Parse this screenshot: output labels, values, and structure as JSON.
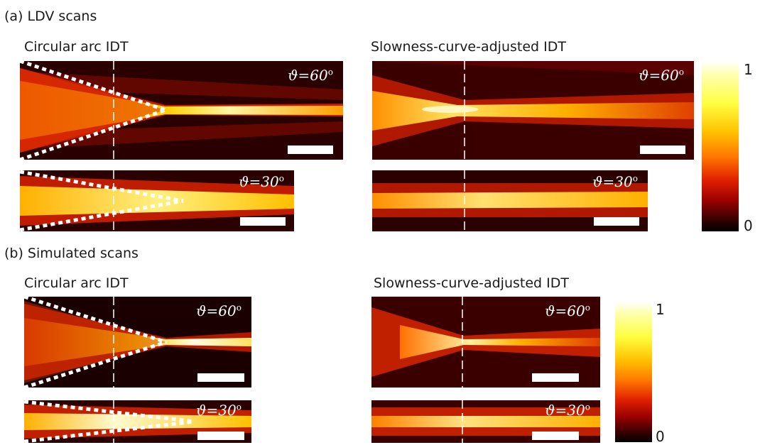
{
  "section_a": "(a) LDV scans",
  "section_b": "(b) Simulated scans",
  "left_title": "Circular arc IDT",
  "right_title": "Slowness-curve-adjusted IDT",
  "angle_60_symbol": "ϑ=60",
  "angle_30_symbol": "ϑ=30",
  "degree": "o",
  "colorbar": {
    "max": "1",
    "min": "0"
  },
  "colors": {
    "hot_low": "#000000",
    "hot_mid": "#e02000",
    "hot_high": "#ffff40",
    "hot_peak": "#ffffff"
  }
}
